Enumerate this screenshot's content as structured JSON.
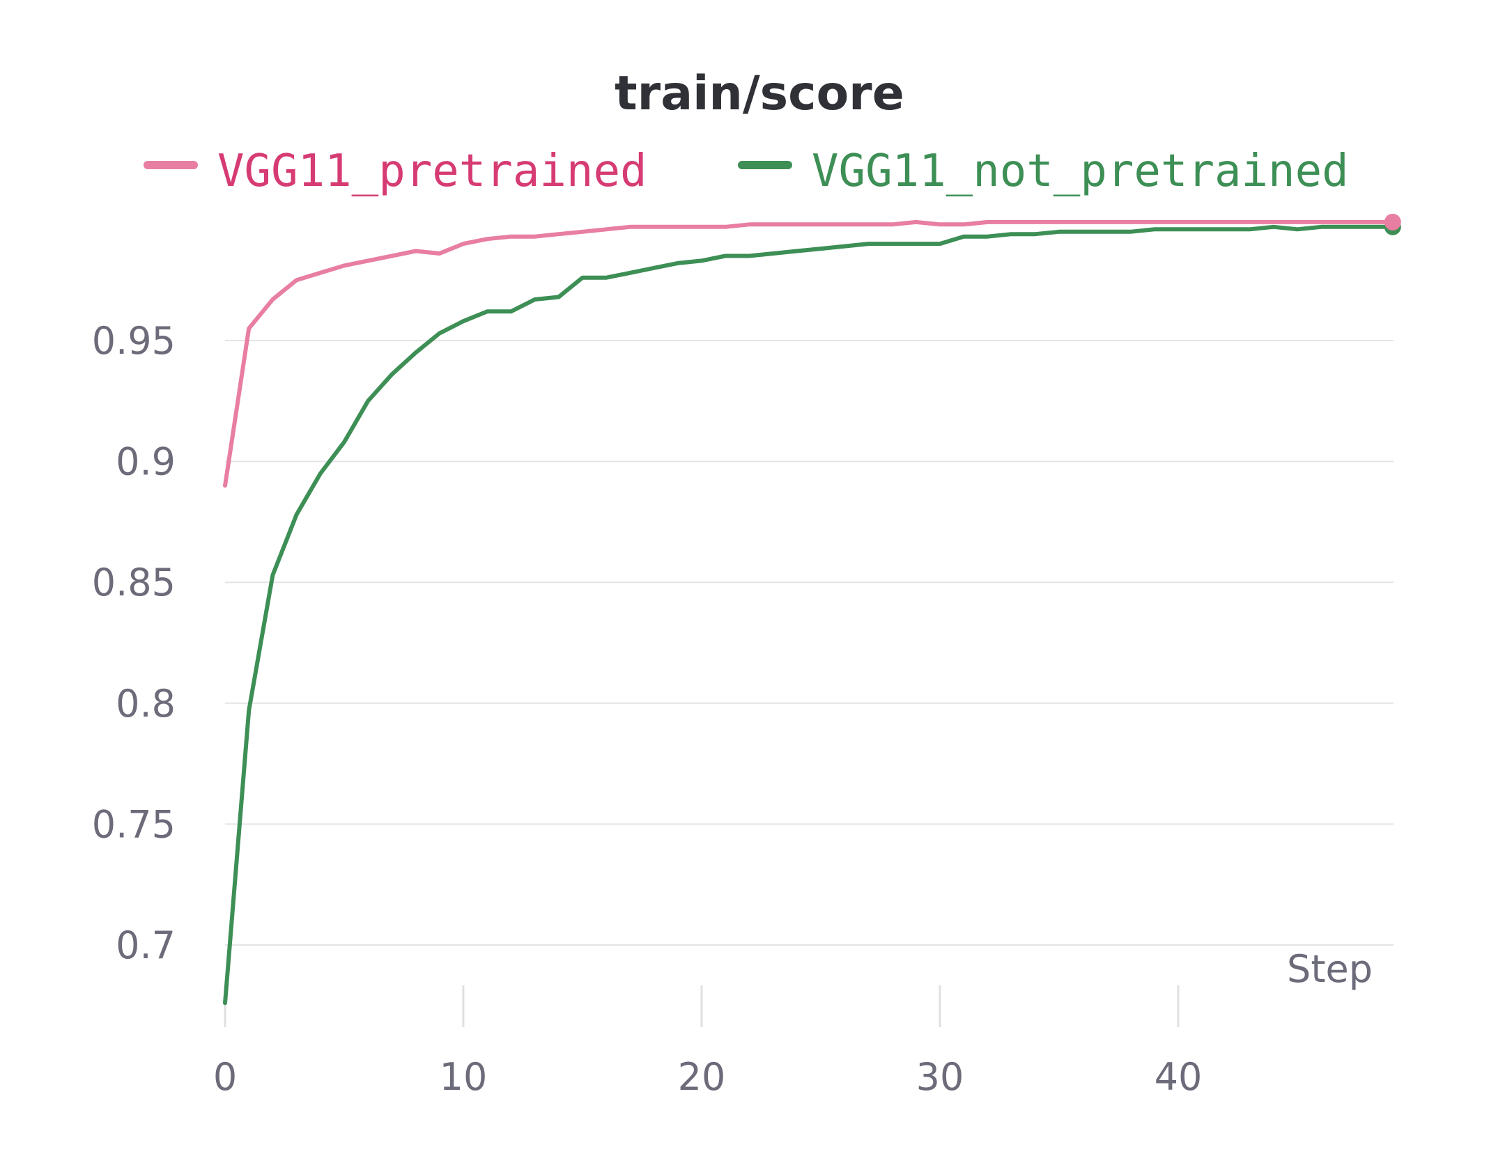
{
  "chart_data": {
    "type": "line",
    "title": "train/score",
    "xlabel": "Step",
    "ylabel": "",
    "xlim": [
      0,
      49
    ],
    "ylim": [
      0.675,
      0.997
    ],
    "x_ticks": [
      0,
      10,
      20,
      30,
      40
    ],
    "x_tick_labels": [
      "0",
      "10",
      "20",
      "30",
      "40"
    ],
    "y_ticks": [
      0.7,
      0.75,
      0.8,
      0.85,
      0.9,
      0.95
    ],
    "y_tick_labels": [
      "0.7",
      "0.75",
      "0.8",
      "0.85",
      "0.9",
      "0.95"
    ],
    "grid": true,
    "legend_position": "top",
    "x": [
      0,
      1,
      2,
      3,
      4,
      5,
      6,
      7,
      8,
      9,
      10,
      11,
      12,
      13,
      14,
      15,
      16,
      17,
      18,
      19,
      20,
      21,
      22,
      23,
      24,
      25,
      26,
      27,
      28,
      29,
      30,
      31,
      32,
      33,
      34,
      35,
      36,
      37,
      38,
      39,
      40,
      41,
      42,
      43,
      44,
      45,
      46,
      47,
      48,
      49
    ],
    "series": [
      {
        "name": "VGG11_pretrained",
        "color": "#e87ea1",
        "label_color": "#d63b73",
        "values": [
          0.89,
          0.955,
          0.967,
          0.975,
          0.978,
          0.981,
          0.983,
          0.985,
          0.987,
          0.986,
          0.99,
          0.992,
          0.993,
          0.993,
          0.994,
          0.995,
          0.996,
          0.997,
          0.997,
          0.997,
          0.997,
          0.997,
          0.998,
          0.998,
          0.998,
          0.998,
          0.998,
          0.998,
          0.998,
          0.999,
          0.998,
          0.998,
          0.999,
          0.999,
          0.999,
          0.999,
          0.999,
          0.999,
          0.999,
          0.999,
          0.999,
          0.999,
          0.999,
          0.999,
          0.999,
          0.999,
          0.999,
          0.999,
          0.999,
          0.999
        ]
      },
      {
        "name": "VGG11_not_pretrained",
        "color": "#3d8f55",
        "label_color": "#3d8f55",
        "values": [
          0.676,
          0.797,
          0.853,
          0.878,
          0.895,
          0.908,
          0.925,
          0.936,
          0.945,
          0.953,
          0.958,
          0.962,
          0.962,
          0.967,
          0.968,
          0.976,
          0.976,
          0.978,
          0.98,
          0.982,
          0.983,
          0.985,
          0.985,
          0.986,
          0.987,
          0.988,
          0.989,
          0.99,
          0.99,
          0.99,
          0.99,
          0.993,
          0.993,
          0.994,
          0.994,
          0.995,
          0.995,
          0.995,
          0.995,
          0.996,
          0.996,
          0.996,
          0.996,
          0.996,
          0.997,
          0.996,
          0.997,
          0.997,
          0.997,
          0.997
        ]
      }
    ]
  }
}
